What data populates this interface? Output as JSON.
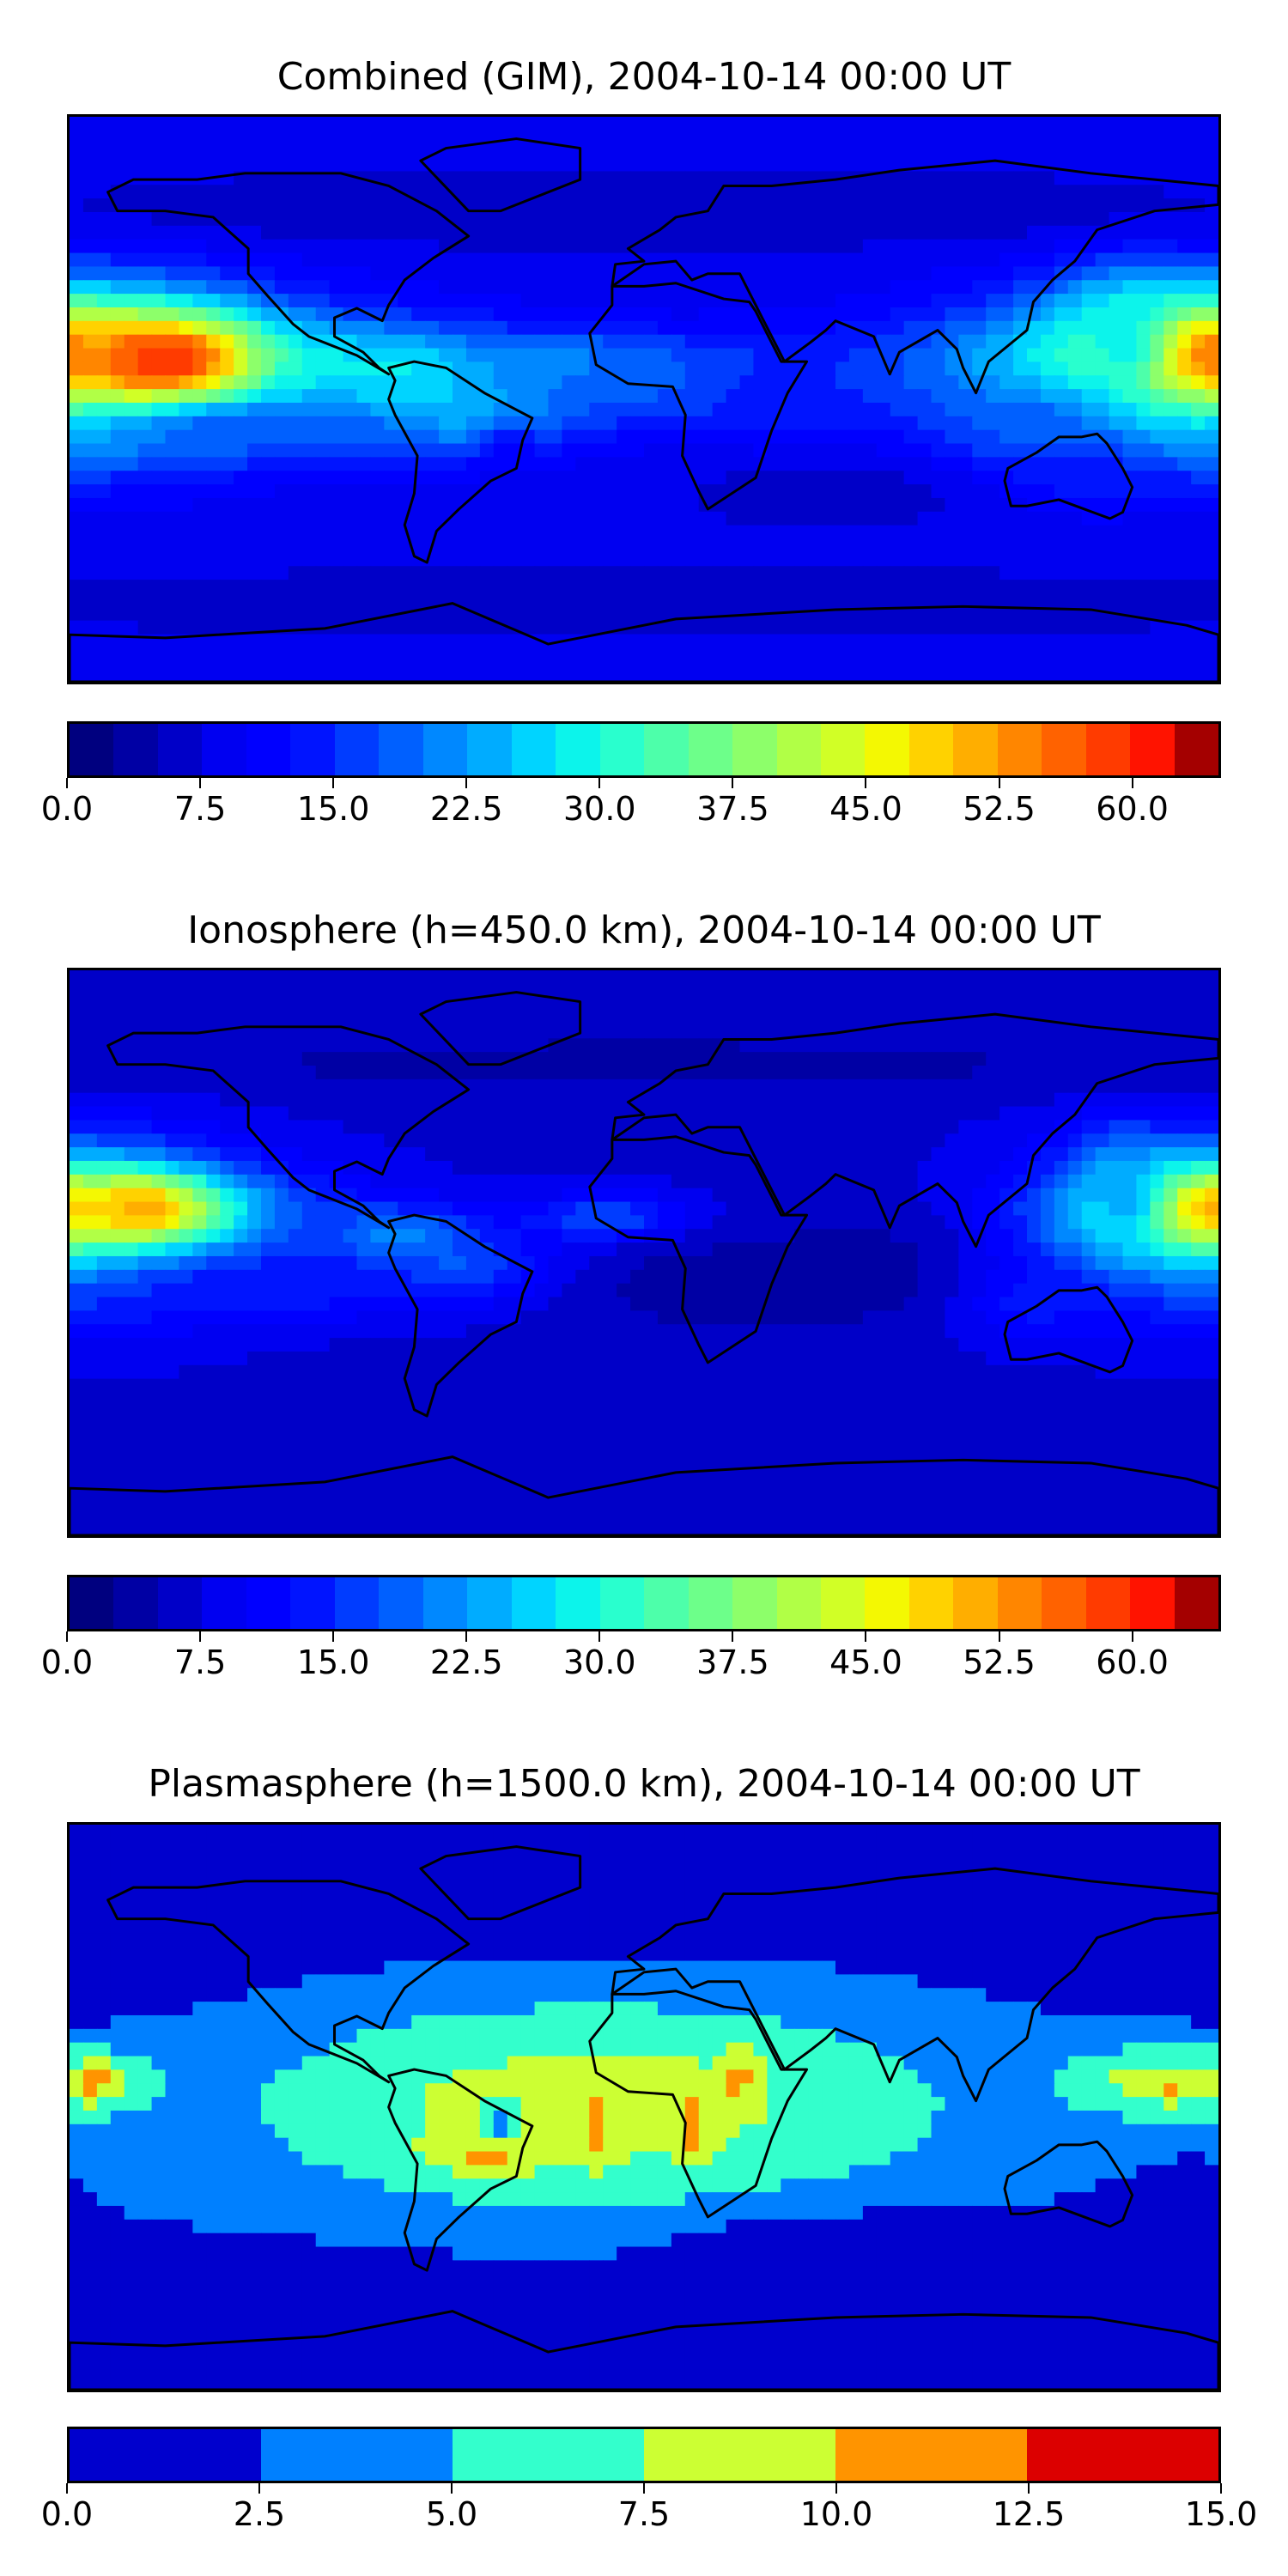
{
  "chart_data": [
    {
      "type": "heatmap",
      "title": "Combined (GIM), 2004-10-14 00:00 UT",
      "colorbar": {
        "range": [
          0.0,
          65.0
        ],
        "levels": 26,
        "tick_labels": [
          "0.0",
          "7.5",
          "15.0",
          "22.5",
          "30.0",
          "37.5",
          "45.0",
          "52.5",
          "60.0"
        ],
        "tick_values": [
          0.0,
          7.5,
          15.0,
          22.5,
          30.0,
          37.5,
          45.0,
          52.5,
          60.0
        ]
      },
      "features": [
        {
          "region": "central Pacific near 155°W, 15°N",
          "value": 60
        },
        {
          "region": "western Pacific near 175°E, 15°N",
          "value": 57
        },
        {
          "region": "tropical Pacific band 10°N–5°S",
          "value": 40
        },
        {
          "region": "southern Brazil anomaly",
          "value": 12
        },
        {
          "region": "high latitudes",
          "value": 5
        }
      ]
    },
    {
      "type": "heatmap",
      "title": "Ionosphere  (h=450.0 km), 2004-10-14 00:00 UT",
      "colorbar": {
        "range": [
          0.0,
          65.0
        ],
        "levels": 26,
        "tick_labels": [
          "0.0",
          "7.5",
          "15.0",
          "22.5",
          "30.0",
          "37.5",
          "45.0",
          "52.5",
          "60.0"
        ],
        "tick_values": [
          0.0,
          7.5,
          15.0,
          22.5,
          30.0,
          37.5,
          45.0,
          52.5,
          60.0
        ]
      },
      "features": [
        {
          "region": "central Pacific near 160°W, 15°N",
          "value": 50
        },
        {
          "region": "western Pacific near 175°E, 15°N",
          "value": 50
        },
        {
          "region": "tropical Pacific band",
          "value": 35
        },
        {
          "region": "Africa / Indian Ocean",
          "value": 5
        },
        {
          "region": "high latitudes",
          "value": 5
        }
      ]
    },
    {
      "type": "heatmap",
      "title": "Plasmasphere (h=1500.0 km), 2004-10-14 00:00 UT",
      "colorbar": {
        "range": [
          0.0,
          15.0
        ],
        "levels": 6,
        "tick_labels": [
          "0.0",
          "2.5",
          "5.0",
          "7.5",
          "10.0",
          "12.5",
          "15.0"
        ],
        "tick_values": [
          0.0,
          2.5,
          5.0,
          7.5,
          10.0,
          12.5,
          15.0
        ]
      },
      "features": [
        {
          "region": "West Africa near 15°E, 5°S",
          "value": 13
        },
        {
          "region": "South America / South Atlantic",
          "value": 11
        },
        {
          "region": "East Africa near 30°E, 10°N",
          "value": 11
        },
        {
          "region": "central Pacific near 172°W, 8°N",
          "value": 11
        },
        {
          "region": "western Pacific near 165°E, 5°N",
          "value": 11
        },
        {
          "region": "low-latitude band",
          "value": 8
        },
        {
          "region": "high latitudes",
          "value": 1
        }
      ]
    }
  ],
  "colors": {
    "jet26": [
      "#00007f",
      "#0000a4",
      "#0000c8",
      "#0000f1",
      "#0000ff",
      "#0014ff",
      "#003cff",
      "#0060ff",
      "#0088ff",
      "#00acff",
      "#00d4ff",
      "#0cf4eb",
      "#29ffce",
      "#4dffaa",
      "#6dff8a",
      "#8dff6a",
      "#b1ff46",
      "#d1ff26",
      "#f4f802",
      "#ffd200",
      "#ffae00",
      "#ff8600",
      "#ff6200",
      "#ff3b00",
      "#ff1300",
      "#a40000"
    ],
    "jet6": [
      "#0000cd",
      "#0080ff",
      "#33ffcc",
      "#ccff33",
      "#ff9400",
      "#dc0000"
    ],
    "coastline": "#000000"
  }
}
